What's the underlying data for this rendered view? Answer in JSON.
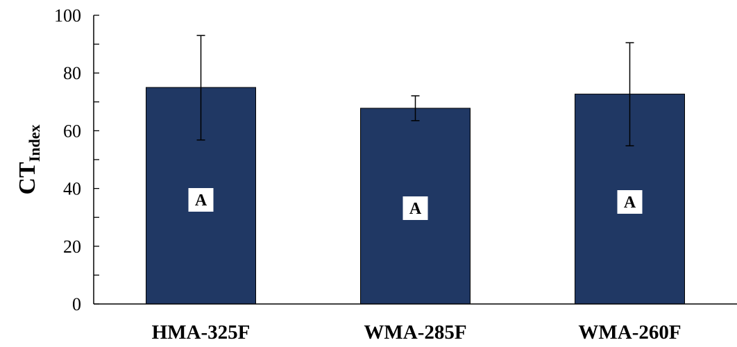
{
  "chart_data": {
    "type": "bar",
    "categories": [
      "HMA-325F",
      "WMA-285F",
      "WMA-260F"
    ],
    "values": [
      75,
      67.8,
      72.7
    ],
    "error_low": [
      56.8,
      63.5,
      54.8
    ],
    "error_high": [
      93,
      72.1,
      90.5
    ],
    "group_letters": [
      "A",
      "A",
      "A"
    ],
    "ylabel_main": "CT",
    "ylabel_sub": "Index",
    "ylim": [
      0,
      100
    ],
    "yticks": [
      0,
      20,
      40,
      60,
      80,
      100
    ],
    "grid": false,
    "legend": "none",
    "bar_color": "#203864"
  }
}
